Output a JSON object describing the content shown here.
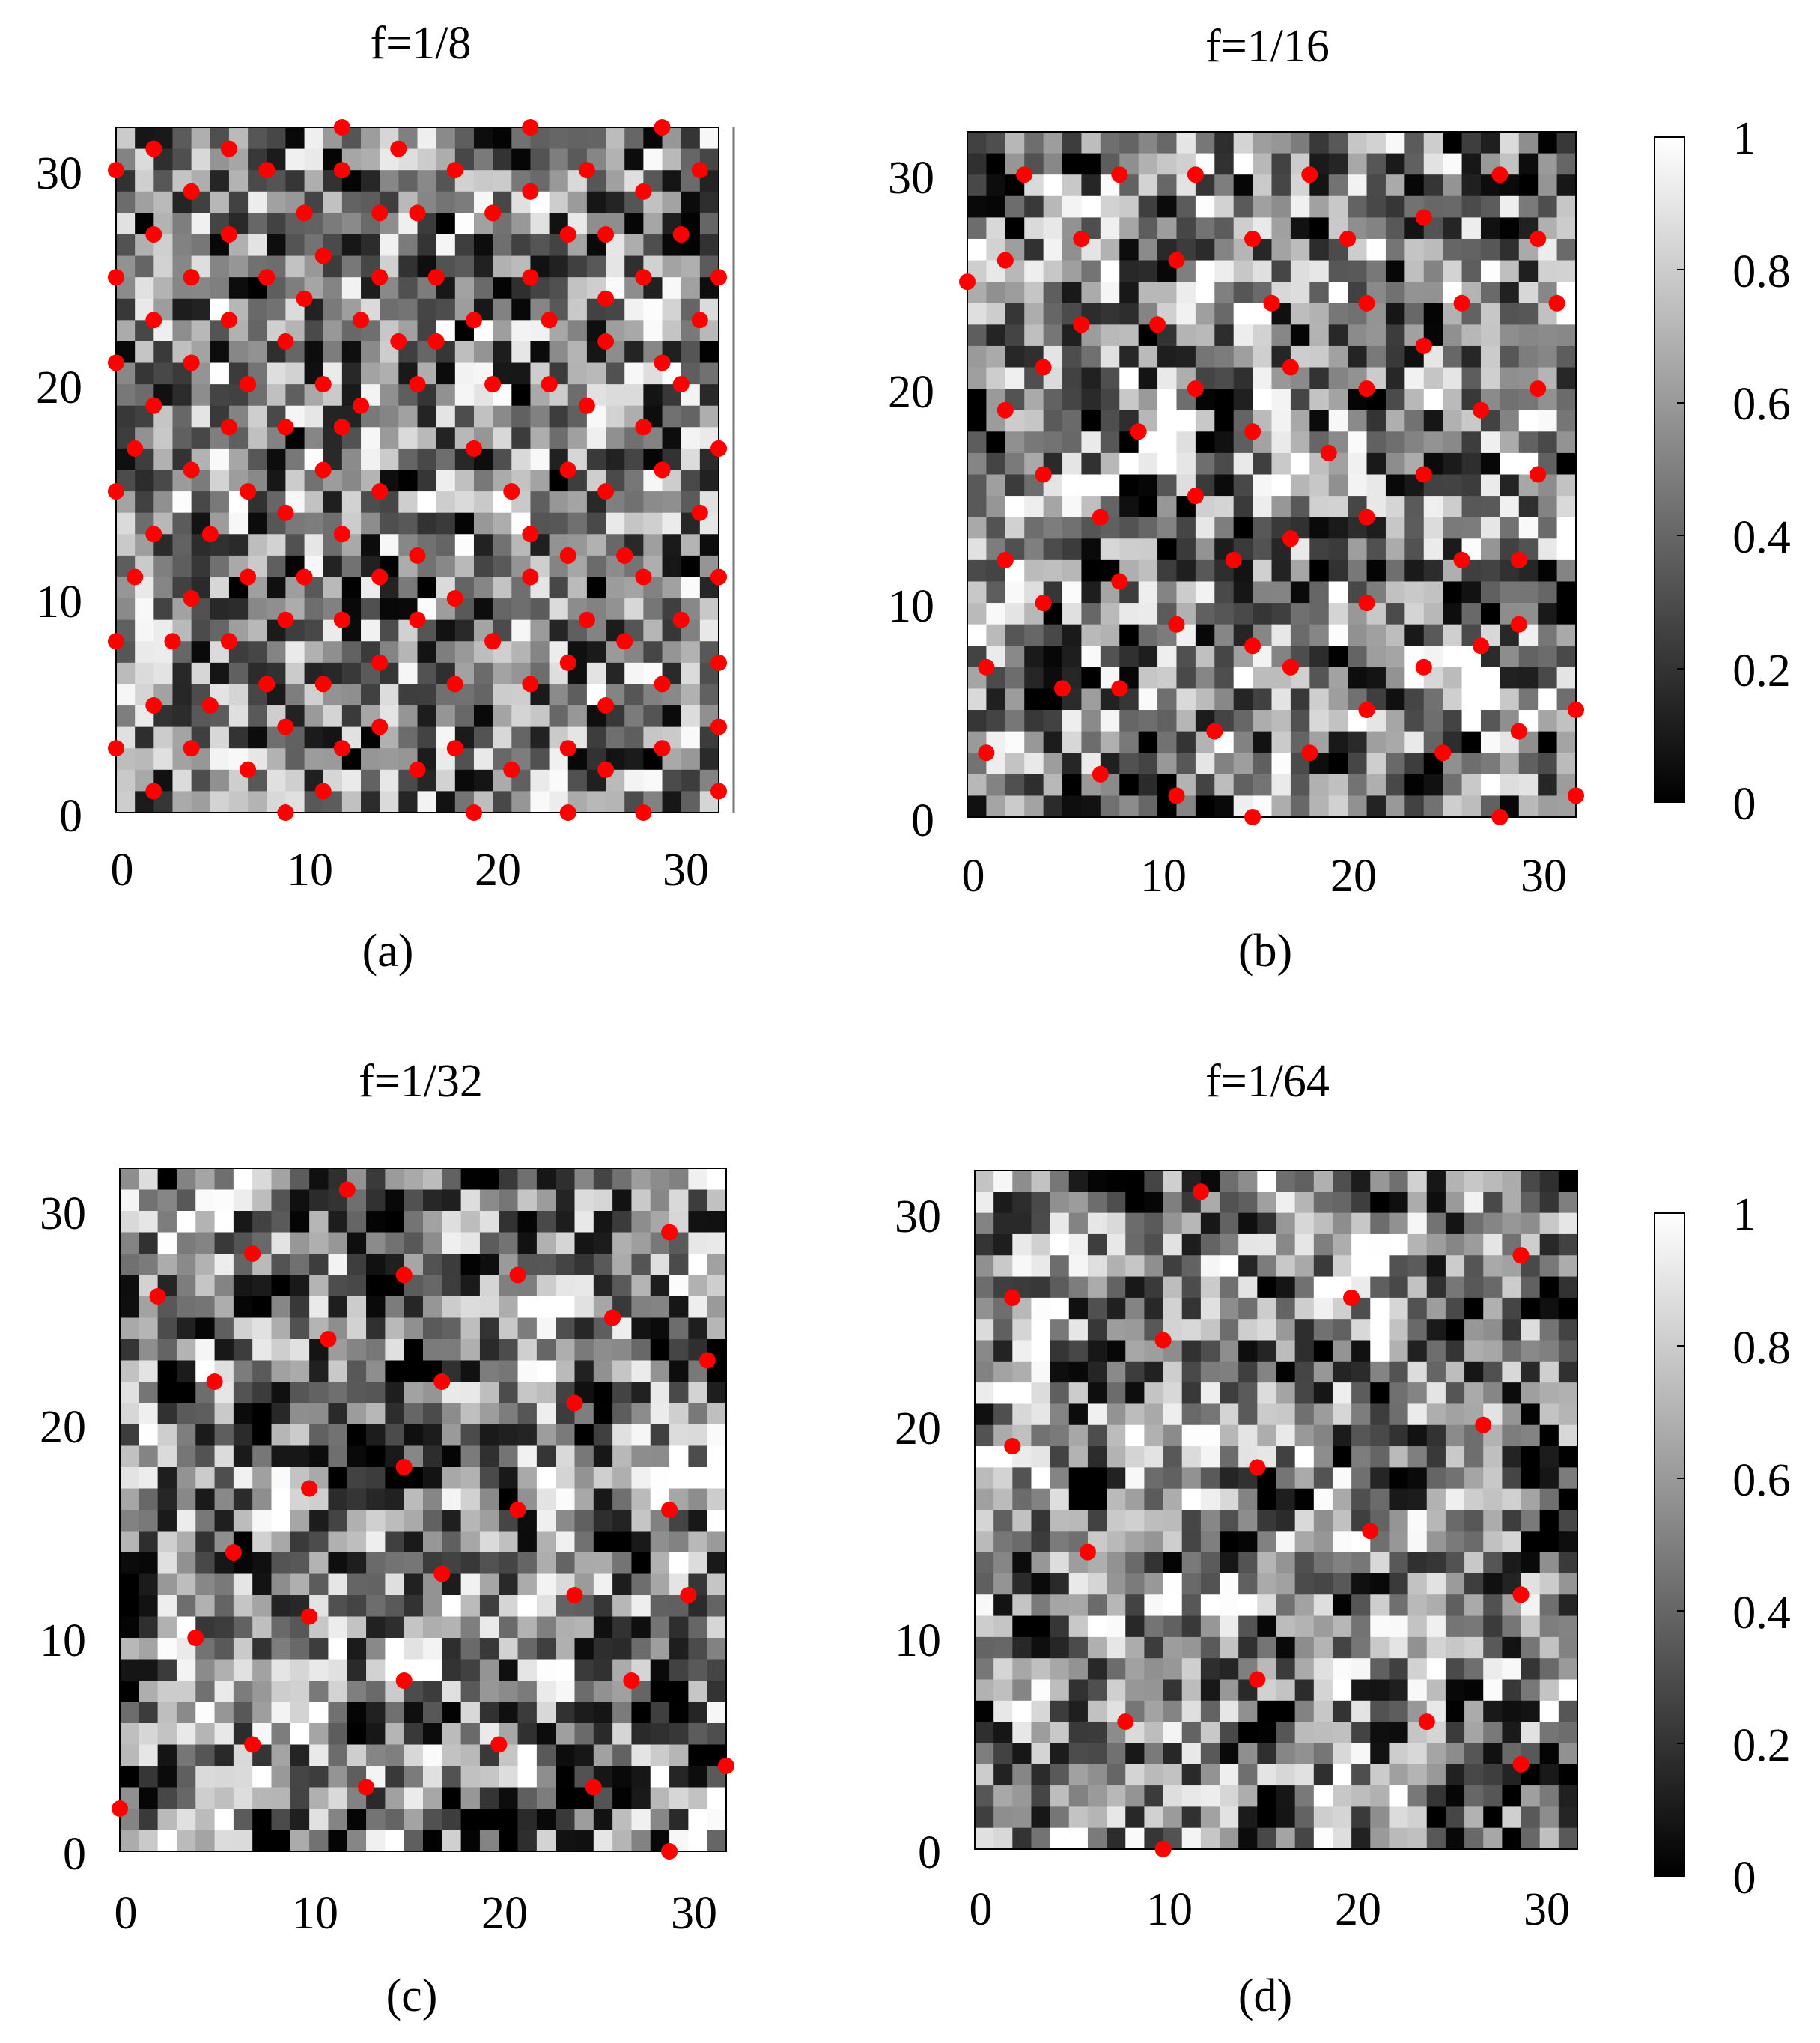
{
  "chart_data": [
    {
      "type": "heatmap",
      "panel": "a",
      "title": "f=1/8",
      "caption": "(a)",
      "x_ticks": [
        "0",
        "10",
        "20",
        "30"
      ],
      "y_ticks": [
        "0",
        "10",
        "20",
        "30"
      ],
      "xlim": [
        0,
        32
      ],
      "ylim": [
        0,
        32
      ],
      "grid": false,
      "cell_values": "32x32 random grayscale field, values in [0,1]",
      "seed": 8,
      "smooth": 0.0,
      "marker_color": "#ff0000",
      "points": [
        [
          12,
          32
        ],
        [
          22,
          32
        ],
        [
          29,
          32
        ],
        [
          0,
          30
        ],
        [
          2,
          31
        ],
        [
          6,
          31
        ],
        [
          15,
          31
        ],
        [
          4,
          29
        ],
        [
          8,
          30
        ],
        [
          12,
          30
        ],
        [
          18,
          30
        ],
        [
          22,
          29
        ],
        [
          25,
          30
        ],
        [
          28,
          29
        ],
        [
          31,
          30
        ],
        [
          2,
          27
        ],
        [
          6,
          27
        ],
        [
          10,
          28
        ],
        [
          14,
          28
        ],
        [
          16,
          28
        ],
        [
          20,
          28
        ],
        [
          24,
          27
        ],
        [
          26,
          27
        ],
        [
          30,
          27
        ],
        [
          0,
          25
        ],
        [
          4,
          25
        ],
        [
          8,
          25
        ],
        [
          11,
          26
        ],
        [
          14,
          25
        ],
        [
          17,
          25
        ],
        [
          22,
          25
        ],
        [
          28,
          25
        ],
        [
          32,
          25
        ],
        [
          2,
          23
        ],
        [
          6,
          23
        ],
        [
          10,
          24
        ],
        [
          13,
          23
        ],
        [
          19,
          23
        ],
        [
          23,
          23
        ],
        [
          26,
          24
        ],
        [
          31,
          23
        ],
        [
          0,
          21
        ],
        [
          4,
          21
        ],
        [
          9,
          22
        ],
        [
          15,
          22
        ],
        [
          17,
          22
        ],
        [
          26,
          22
        ],
        [
          29,
          21
        ],
        [
          2,
          19
        ],
        [
          7,
          20
        ],
        [
          11,
          20
        ],
        [
          13,
          19
        ],
        [
          16,
          20
        ],
        [
          20,
          20
        ],
        [
          23,
          20
        ],
        [
          30,
          20
        ],
        [
          6,
          18
        ],
        [
          9,
          18
        ],
        [
          12,
          18
        ],
        [
          25,
          19
        ],
        [
          28,
          18
        ],
        [
          32,
          17
        ],
        [
          0,
          15
        ],
        [
          1,
          17
        ],
        [
          4,
          16
        ],
        [
          7,
          15
        ],
        [
          11,
          16
        ],
        [
          14,
          15
        ],
        [
          19,
          17
        ],
        [
          21,
          15
        ],
        [
          24,
          16
        ],
        [
          26,
          15
        ],
        [
          29,
          16
        ],
        [
          9,
          14
        ],
        [
          5,
          13
        ],
        [
          2,
          13
        ],
        [
          12,
          13
        ],
        [
          16,
          12
        ],
        [
          22,
          13
        ],
        [
          24,
          12
        ],
        [
          27,
          12
        ],
        [
          31,
          14
        ],
        [
          1,
          11
        ],
        [
          4,
          10
        ],
        [
          7,
          11
        ],
        [
          10,
          11
        ],
        [
          14,
          11
        ],
        [
          18,
          10
        ],
        [
          22,
          11
        ],
        [
          28,
          11
        ],
        [
          32,
          11
        ],
        [
          0,
          8
        ],
        [
          3,
          8
        ],
        [
          6,
          8
        ],
        [
          9,
          9
        ],
        [
          12,
          9
        ],
        [
          16,
          9
        ],
        [
          20,
          8
        ],
        [
          25,
          9
        ],
        [
          27,
          8
        ],
        [
          30,
          9
        ],
        [
          2,
          5
        ],
        [
          5,
          5
        ],
        [
          8,
          6
        ],
        [
          11,
          6
        ],
        [
          14,
          7
        ],
        [
          18,
          6
        ],
        [
          22,
          6
        ],
        [
          24,
          7
        ],
        [
          26,
          5
        ],
        [
          29,
          6
        ],
        [
          32,
          7
        ],
        [
          0,
          3
        ],
        [
          4,
          3
        ],
        [
          7,
          2
        ],
        [
          9,
          4
        ],
        [
          12,
          3
        ],
        [
          14,
          4
        ],
        [
          16,
          2
        ],
        [
          18,
          3
        ],
        [
          21,
          2
        ],
        [
          24,
          3
        ],
        [
          26,
          2
        ],
        [
          29,
          3
        ],
        [
          32,
          4
        ],
        [
          2,
          1
        ],
        [
          11,
          1
        ],
        [
          9,
          0
        ],
        [
          19,
          0
        ],
        [
          24,
          0
        ],
        [
          28,
          0
        ],
        [
          32,
          1
        ]
      ]
    },
    {
      "type": "heatmap",
      "panel": "b",
      "title": "f=1/16",
      "caption": "(b)",
      "x_ticks": [
        "0",
        "10",
        "20",
        "30"
      ],
      "y_ticks": [
        "0",
        "10",
        "20",
        "30"
      ],
      "xlim": [
        0,
        32
      ],
      "ylim": [
        0,
        32
      ],
      "grid": false,
      "cell_values": "32x32 random grayscale field, values in [0,1]",
      "seed": 16,
      "smooth": 0.25,
      "marker_color": "#ff0000",
      "points": [
        [
          3,
          30
        ],
        [
          8,
          30
        ],
        [
          12,
          30
        ],
        [
          18,
          30
        ],
        [
          28,
          30
        ],
        [
          6,
          27
        ],
        [
          15,
          27
        ],
        [
          20,
          27
        ],
        [
          24,
          28
        ],
        [
          30,
          27
        ],
        [
          0,
          25
        ],
        [
          2,
          26
        ],
        [
          11,
          26
        ],
        [
          6,
          23
        ],
        [
          10,
          23
        ],
        [
          16,
          24
        ],
        [
          21,
          24
        ],
        [
          26,
          24
        ],
        [
          31,
          24
        ],
        [
          4,
          21
        ],
        [
          17,
          21
        ],
        [
          24,
          22
        ],
        [
          2,
          19
        ],
        [
          9,
          18
        ],
        [
          12,
          20
        ],
        [
          15,
          18
        ],
        [
          21,
          20
        ],
        [
          27,
          19
        ],
        [
          30,
          20
        ],
        [
          4,
          16
        ],
        [
          19,
          17
        ],
        [
          24,
          16
        ],
        [
          30,
          16
        ],
        [
          7,
          14
        ],
        [
          12,
          15
        ],
        [
          21,
          14
        ],
        [
          2,
          12
        ],
        [
          8,
          11
        ],
        [
          14,
          12
        ],
        [
          17,
          13
        ],
        [
          26,
          12
        ],
        [
          29,
          12
        ],
        [
          4,
          10
        ],
        [
          11,
          9
        ],
        [
          21,
          10
        ],
        [
          29,
          9
        ],
        [
          1,
          7
        ],
        [
          5,
          6
        ],
        [
          8,
          6
        ],
        [
          15,
          8
        ],
        [
          17,
          7
        ],
        [
          24,
          7
        ],
        [
          27,
          8
        ],
        [
          1,
          3
        ],
        [
          7,
          2
        ],
        [
          13,
          4
        ],
        [
          11,
          1
        ],
        [
          18,
          3
        ],
        [
          21,
          5
        ],
        [
          25,
          3
        ],
        [
          29,
          4
        ],
        [
          32,
          5
        ],
        [
          15,
          0
        ],
        [
          28,
          0
        ],
        [
          32,
          1
        ]
      ]
    },
    {
      "type": "heatmap",
      "panel": "c",
      "title": "f=1/32",
      "caption": "(c)",
      "x_ticks": [
        "0",
        "10",
        "20",
        "30"
      ],
      "y_ticks": [
        "0",
        "10",
        "20",
        "30"
      ],
      "xlim": [
        0,
        32
      ],
      "ylim": [
        0,
        32
      ],
      "grid": false,
      "cell_values": "32x32 random grayscale field, values in [0,1]",
      "seed": 32,
      "smooth": 0.45,
      "marker_color": "#ff0000",
      "points": [
        [
          12,
          31
        ],
        [
          29,
          29
        ],
        [
          7,
          28
        ],
        [
          15,
          27
        ],
        [
          21,
          27
        ],
        [
          2,
          26
        ],
        [
          26,
          25
        ],
        [
          11,
          24
        ],
        [
          31,
          23
        ],
        [
          5,
          22
        ],
        [
          17,
          22
        ],
        [
          24,
          21
        ],
        [
          15,
          18
        ],
        [
          10,
          17
        ],
        [
          21,
          16
        ],
        [
          29,
          16
        ],
        [
          6,
          14
        ],
        [
          17,
          13
        ],
        [
          24,
          12
        ],
        [
          30,
          12
        ],
        [
          10,
          11
        ],
        [
          4,
          10
        ],
        [
          27,
          8
        ],
        [
          15,
          8
        ],
        [
          7,
          5
        ],
        [
          20,
          5
        ],
        [
          32,
          4
        ],
        [
          13,
          3
        ],
        [
          25,
          3
        ],
        [
          0,
          2
        ],
        [
          29,
          0
        ]
      ]
    },
    {
      "type": "heatmap",
      "panel": "d",
      "title": "f=1/64",
      "caption": "(d)",
      "x_ticks": [
        "0",
        "10",
        "20",
        "30"
      ],
      "y_ticks": [
        "0",
        "10",
        "20",
        "30"
      ],
      "xlim": [
        0,
        32
      ],
      "ylim": [
        0,
        32
      ],
      "grid": false,
      "cell_values": "32x32 random grayscale field, values in [0,1]",
      "seed": 64,
      "smooth": 0.45,
      "marker_color": "#ff0000",
      "points": [
        [
          12,
          31
        ],
        [
          29,
          28
        ],
        [
          2,
          26
        ],
        [
          20,
          26
        ],
        [
          10,
          24
        ],
        [
          27,
          20
        ],
        [
          2,
          19
        ],
        [
          15,
          18
        ],
        [
          21,
          15
        ],
        [
          6,
          14
        ],
        [
          29,
          12
        ],
        [
          15,
          8
        ],
        [
          8,
          6
        ],
        [
          24,
          6
        ],
        [
          29,
          4
        ],
        [
          10,
          0
        ]
      ]
    }
  ],
  "colorbar": {
    "ticks": [
      "1",
      "0.8",
      "0.6",
      "0.4",
      "0.2",
      "0"
    ],
    "range": [
      0,
      1
    ]
  }
}
